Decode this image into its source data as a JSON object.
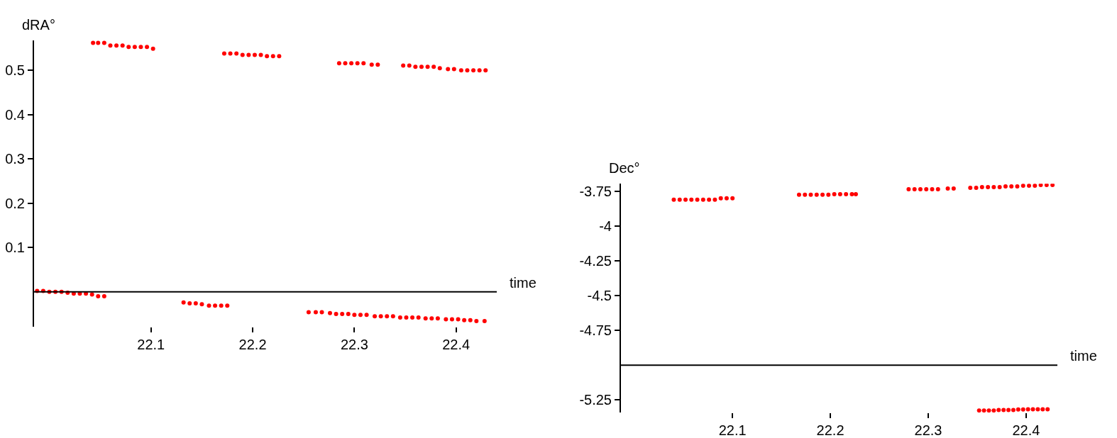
{
  "chart_data": [
    {
      "type": "scatter",
      "ylabel": "dRA°",
      "xlabel": "time",
      "marker": "circle",
      "xlim": [
        21.985,
        22.44
      ],
      "ylim": [
        -0.078,
        0.568
      ],
      "xticks": [
        22.1,
        22.2,
        22.3,
        22.4
      ],
      "yticks": [
        0.1,
        0.2,
        0.3,
        0.4,
        0.5
      ],
      "ref_lines": [
        {
          "axis": "y",
          "value": 0
        }
      ],
      "series": [
        {
          "color": "#ff0000",
          "x": [
            22.043,
            22.048,
            22.054,
            22.06,
            22.066,
            22.072,
            22.078,
            22.084,
            22.09,
            22.096,
            22.102,
            22.172,
            22.178,
            22.184,
            22.19,
            22.196,
            22.202,
            22.208,
            22.214,
            22.22,
            22.226,
            22.285,
            22.291,
            22.297,
            22.303,
            22.309,
            22.317,
            22.323,
            22.348,
            22.354,
            22.36,
            22.366,
            22.372,
            22.378,
            22.384,
            22.392,
            22.398,
            22.405,
            22.411,
            22.417,
            22.423,
            22.429
          ],
          "values": [
            0.562,
            0.562,
            0.562,
            0.556,
            0.556,
            0.556,
            0.553,
            0.553,
            0.553,
            0.553,
            0.549,
            0.538,
            0.538,
            0.538,
            0.535,
            0.535,
            0.535,
            0.535,
            0.532,
            0.532,
            0.532,
            0.516,
            0.516,
            0.516,
            0.516,
            0.516,
            0.513,
            0.513,
            0.511,
            0.511,
            0.508,
            0.508,
            0.508,
            0.508,
            0.505,
            0.503,
            0.503,
            0.5,
            0.5,
            0.5,
            0.5,
            0.5
          ]
        },
        {
          "color": "#ff0000",
          "x": [
            21.988,
            21.994,
            22.0,
            22.006,
            22.012,
            22.018,
            22.024,
            22.03,
            22.036,
            22.042,
            22.048,
            22.054,
            22.132,
            22.138,
            22.144,
            22.15,
            22.157,
            22.163,
            22.169,
            22.175,
            22.255,
            22.262,
            22.268,
            22.276,
            22.282,
            22.288,
            22.294,
            22.3,
            22.306,
            22.312,
            22.32,
            22.326,
            22.332,
            22.338,
            22.345,
            22.351,
            22.357,
            22.363,
            22.37,
            22.376,
            22.382,
            22.39,
            22.396,
            22.402,
            22.408,
            22.414,
            22.42,
            22.428
          ],
          "values": [
            0.002,
            0.002,
            0.0,
            0.0,
            0.0,
            -0.002,
            -0.004,
            -0.004,
            -0.004,
            -0.006,
            -0.01,
            -0.01,
            -0.024,
            -0.026,
            -0.026,
            -0.028,
            -0.031,
            -0.031,
            -0.031,
            -0.031,
            -0.046,
            -0.046,
            -0.046,
            -0.048,
            -0.05,
            -0.05,
            -0.05,
            -0.052,
            -0.052,
            -0.052,
            -0.055,
            -0.055,
            -0.055,
            -0.055,
            -0.058,
            -0.058,
            -0.058,
            -0.058,
            -0.06,
            -0.06,
            -0.06,
            -0.062,
            -0.062,
            -0.062,
            -0.064,
            -0.064,
            -0.066,
            -0.066
          ]
        }
      ]
    },
    {
      "type": "scatter",
      "ylabel": "Dec°",
      "xlabel": "time",
      "marker": "circle",
      "xlim": [
        21.986,
        22.432
      ],
      "ylim": [
        -5.34,
        -3.695
      ],
      "xticks": [
        22.1,
        22.2,
        22.3,
        22.4
      ],
      "yticks": [
        -3.75,
        -4,
        -4.25,
        -4.5,
        -4.75,
        -5.25
      ],
      "ref_lines": [
        {
          "axis": "y",
          "value": -5
        }
      ],
      "series": [
        {
          "color": "#ff0000",
          "x": [
            22.04,
            22.046,
            22.052,
            22.058,
            22.064,
            22.07,
            22.076,
            22.082,
            22.088,
            22.094,
            22.1,
            22.168,
            22.174,
            22.18,
            22.186,
            22.192,
            22.198,
            22.204,
            22.21,
            22.216,
            22.222,
            22.226,
            22.28,
            22.286,
            22.292,
            22.298,
            22.304,
            22.31,
            22.32,
            22.326,
            22.343,
            22.349,
            22.355,
            22.361,
            22.367,
            22.373,
            22.379,
            22.385,
            22.391,
            22.397,
            22.403,
            22.409,
            22.415,
            22.421,
            22.427
          ],
          "values": [
            -3.81,
            -3.81,
            -3.81,
            -3.81,
            -3.81,
            -3.81,
            -3.81,
            -3.81,
            -3.8,
            -3.8,
            -3.8,
            -3.775,
            -3.775,
            -3.775,
            -3.775,
            -3.775,
            -3.775,
            -3.77,
            -3.77,
            -3.77,
            -3.77,
            -3.77,
            -3.735,
            -3.735,
            -3.735,
            -3.735,
            -3.735,
            -3.735,
            -3.73,
            -3.73,
            -3.725,
            -3.725,
            -3.72,
            -3.72,
            -3.72,
            -3.72,
            -3.715,
            -3.715,
            -3.715,
            -3.71,
            -3.71,
            -3.71,
            -3.705,
            -3.705,
            -3.705
          ]
        },
        {
          "color": "#ff0000",
          "x": [
            22.352,
            22.357,
            22.362,
            22.367,
            22.372,
            22.377,
            22.382,
            22.387,
            22.392,
            22.397,
            22.402,
            22.407,
            22.412,
            22.417,
            22.422
          ],
          "values": [
            -5.325,
            -5.325,
            -5.325,
            -5.325,
            -5.322,
            -5.322,
            -5.322,
            -5.322,
            -5.318,
            -5.318,
            -5.316,
            -5.316,
            -5.316,
            -5.316,
            -5.316
          ]
        }
      ]
    }
  ]
}
